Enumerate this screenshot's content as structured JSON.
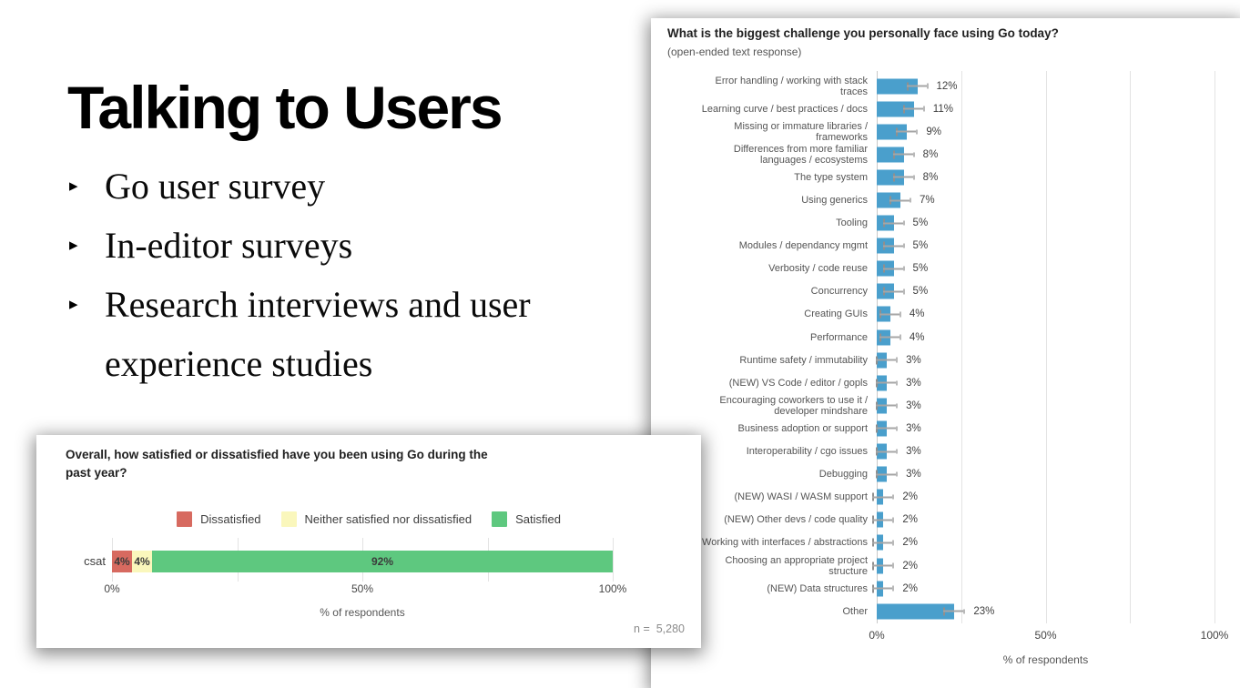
{
  "slide": {
    "title": "Talking to Users",
    "bullets": [
      "Go user survey",
      "In-editor surveys",
      "Research interviews and user experience studies"
    ]
  },
  "chart_data": [
    {
      "type": "bar",
      "orientation": "horizontal",
      "title": "What is the biggest challenge you personally face using Go today?",
      "subtitle": "(open-ended text response)",
      "xlabel": "% of respondents",
      "x_ticks": [
        "0%",
        "50%",
        "100%"
      ],
      "x_tick_values": [
        0,
        50,
        100
      ],
      "xlim": [
        0,
        100
      ],
      "grid": true,
      "gridline_values": [
        25,
        50,
        75,
        100
      ],
      "error_bars": true,
      "bar_color": "#4A9FCC",
      "categories": [
        "Error handling / working with stack\ntraces",
        "Learning curve / best practices / docs",
        "Missing or immature libraries /\nframeworks",
        "Differences from more familiar\nlanguages / ecosystems",
        "The type system",
        "Using generics",
        "Tooling",
        "Modules / dependancy mgmt",
        "Verbosity / code reuse",
        "Concurrency",
        "Creating GUIs",
        "Performance",
        "Runtime safety / immutability",
        "(NEW) VS Code / editor / gopls",
        "Encouraging coworkers to use it /\ndeveloper mindshare",
        "Business adoption or support",
        "Interoperability / cgo issues",
        "Debugging",
        "(NEW) WASI / WASM support",
        "(NEW) Other devs / code quality",
        "Working with interfaces / abstractions",
        "Choosing an appropriate project\nstructure",
        "(NEW) Data structures",
        "Other"
      ],
      "values": [
        12,
        11,
        9,
        8,
        8,
        7,
        5,
        5,
        5,
        5,
        4,
        4,
        3,
        3,
        3,
        3,
        3,
        3,
        2,
        2,
        2,
        2,
        2,
        23
      ],
      "value_labels": [
        "12%",
        "11%",
        "9%",
        "8%",
        "8%",
        "7%",
        "5%",
        "5%",
        "5%",
        "5%",
        "4%",
        "4%",
        "3%",
        "3%",
        "3%",
        "3%",
        "3%",
        "3%",
        "2%",
        "2%",
        "2%",
        "2%",
        "2%",
        "23%"
      ]
    },
    {
      "type": "bar",
      "stacked": true,
      "orientation": "horizontal",
      "title": "Overall, how satisfied or dissatisfied have you been using Go during the\npast year?",
      "categories": [
        "csat"
      ],
      "series": [
        {
          "name": "Dissatisfied",
          "values": [
            4
          ],
          "label": "4%",
          "color": "#D76A60"
        },
        {
          "name": "Neither satisfied nor dissatisfied",
          "values": [
            4
          ],
          "label": "4%",
          "color": "#FAF7BC"
        },
        {
          "name": "Satisfied",
          "values": [
            92
          ],
          "label": "92%",
          "color": "#5EC87F"
        }
      ],
      "legend_position": "top",
      "x_ticks": [
        "0%",
        "50%",
        "100%"
      ],
      "x_tick_values": [
        0,
        50,
        100
      ],
      "xlim": [
        0,
        100
      ],
      "grid": true,
      "gridline_values": [
        0,
        25,
        50,
        75,
        100
      ],
      "xlabel": "% of respondents",
      "n_label": "n =  5,280"
    }
  ]
}
